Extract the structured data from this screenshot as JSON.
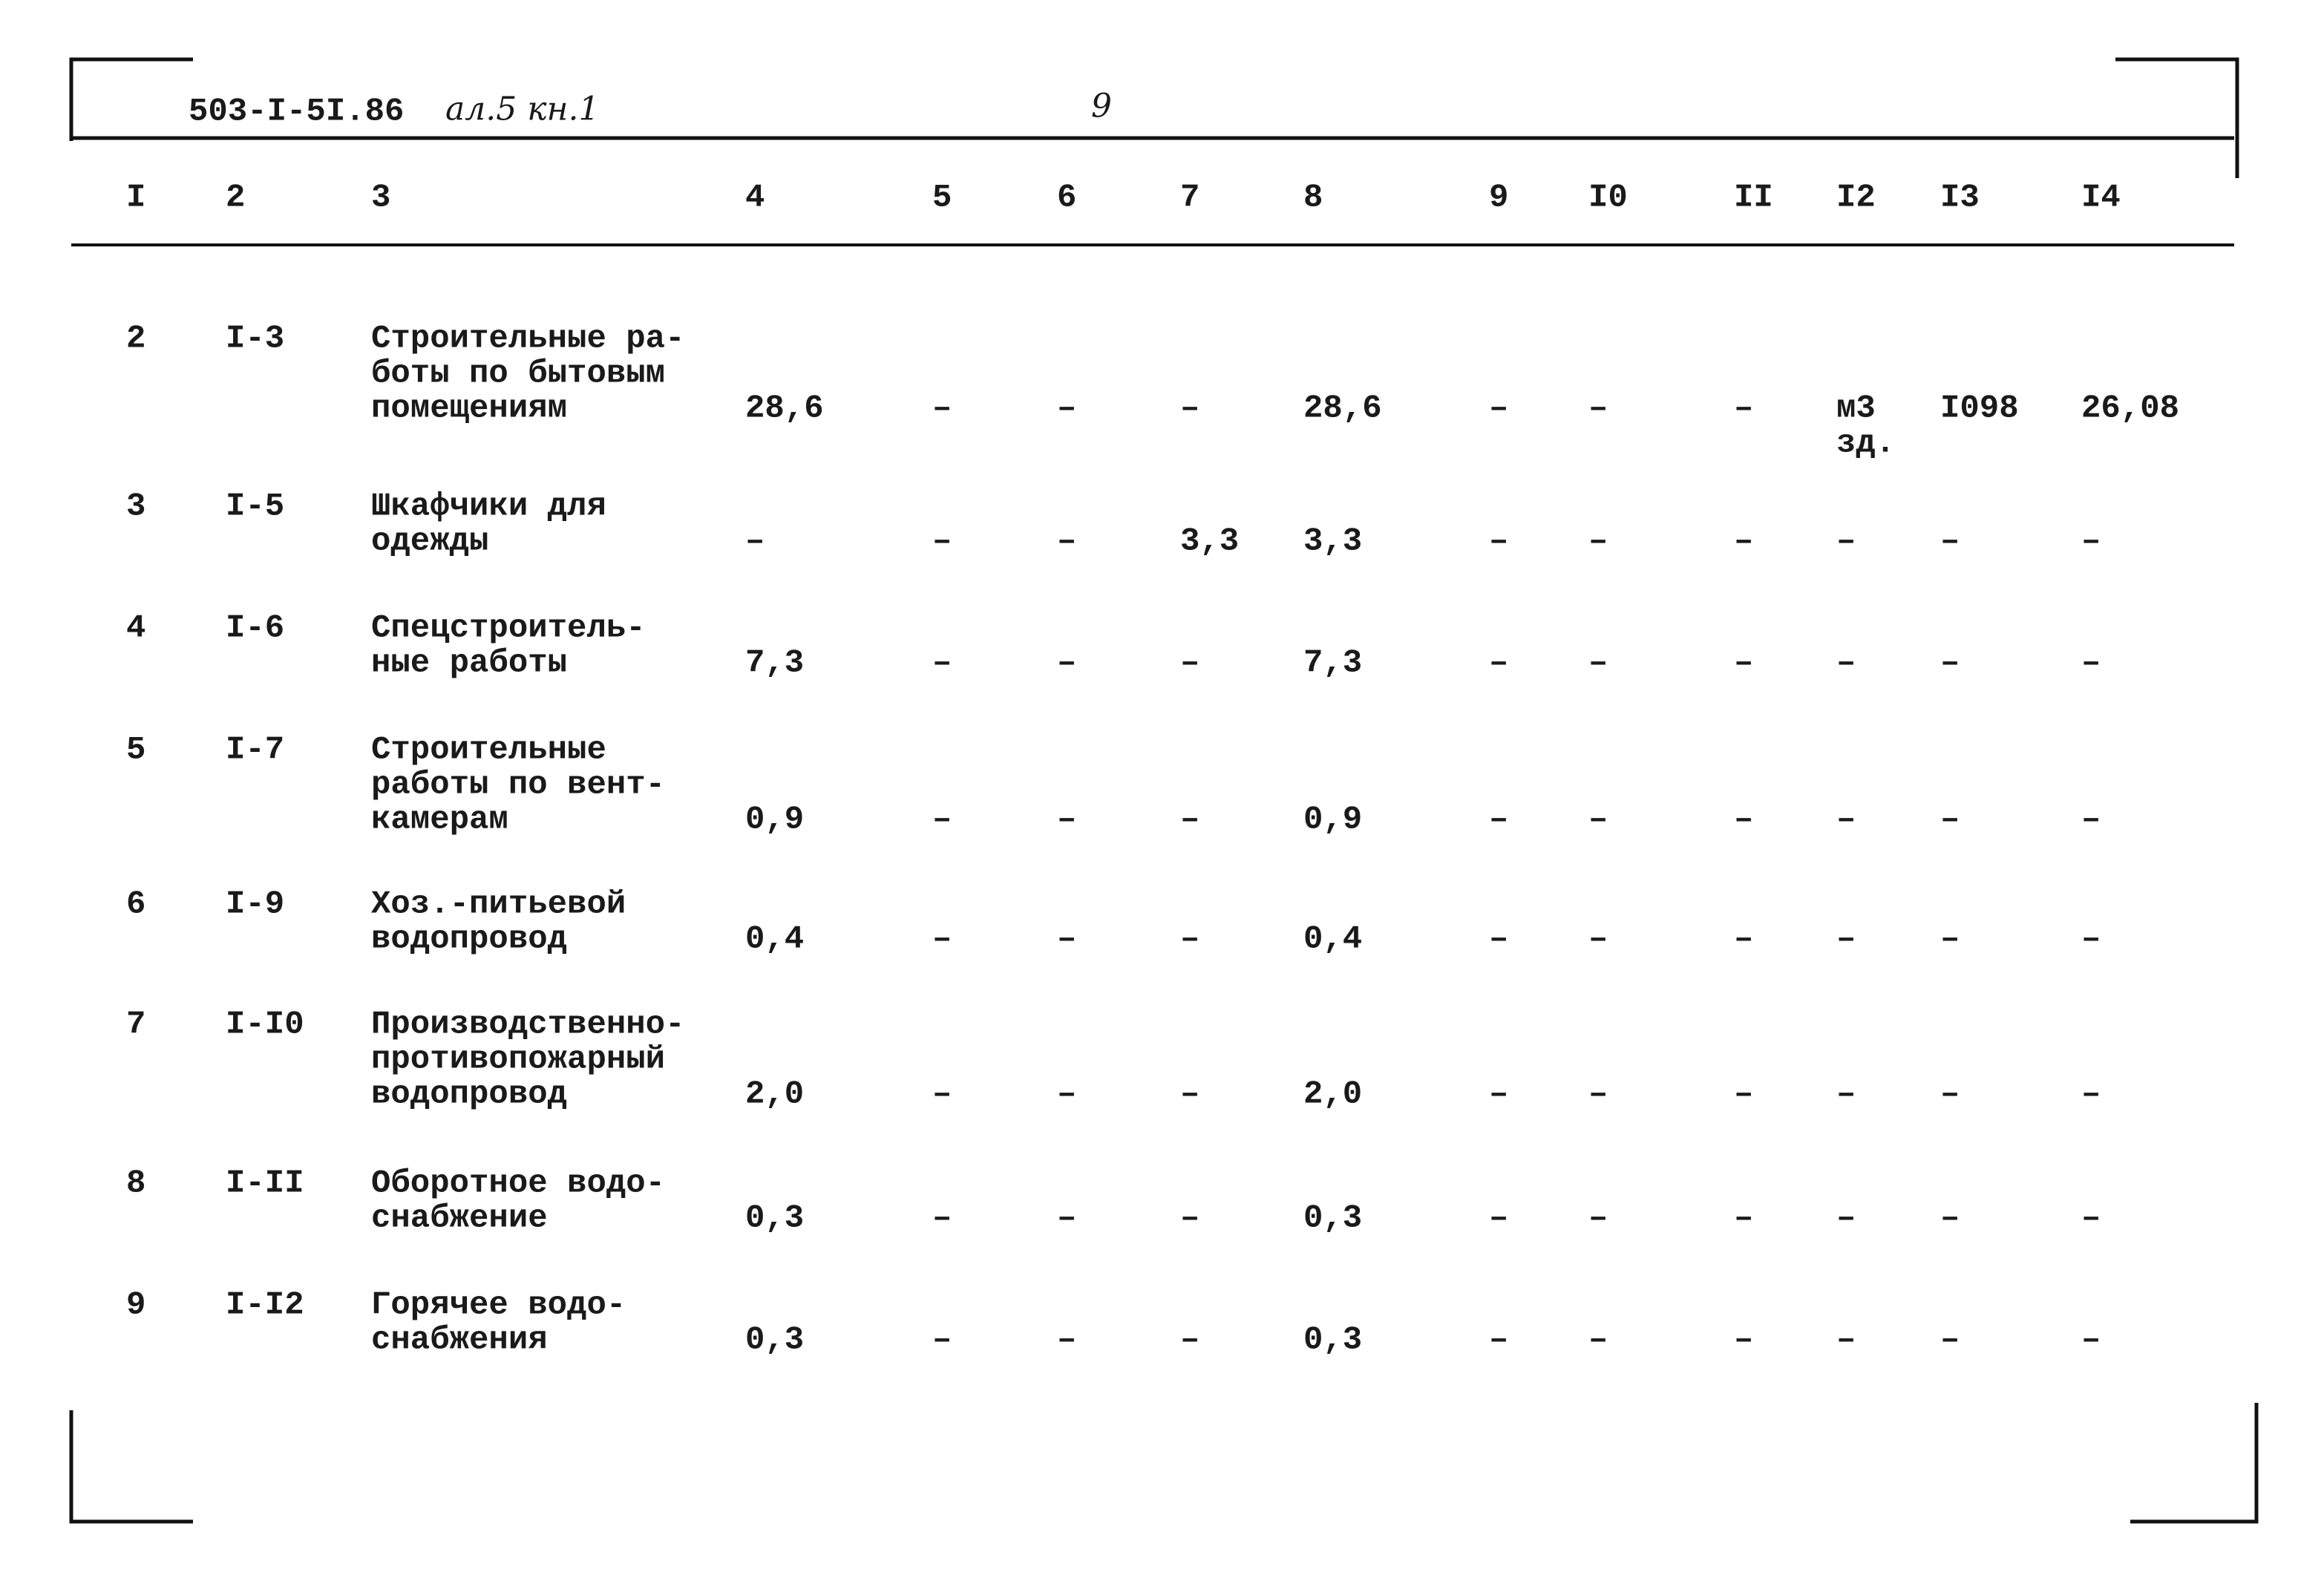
{
  "header": {
    "code": "503-I-5I.86",
    "note": "ал.5 кн.1",
    "page": "9"
  },
  "table": {
    "columns": [
      "I",
      "2",
      "3",
      "4",
      "5",
      "6",
      "7",
      "8",
      "9",
      "I0",
      "II",
      "I2",
      "I3",
      "I4"
    ],
    "rows": [
      [
        "2",
        "I-3",
        [
          "Строительные ра-",
          "боты по бытовым",
          "помещениям"
        ],
        "28,6",
        "–",
        "–",
        "–",
        "28,6",
        "–",
        "–",
        "–",
        [
          "м3",
          "зд."
        ],
        "I098",
        "26,08"
      ],
      [
        "3",
        "I-5",
        [
          "Шкафчики для",
          "одежды"
        ],
        "–",
        "–",
        "–",
        "3,3",
        "3,3",
        "–",
        "–",
        "–",
        "–",
        "–",
        "–"
      ],
      [
        "4",
        "I-6",
        [
          "Спецстроитель-",
          "ные работы"
        ],
        "7,3",
        "–",
        "–",
        "–",
        "7,3",
        "–",
        "–",
        "–",
        "–",
        "–",
        "–"
      ],
      [
        "5",
        "I-7",
        [
          "Строительные",
          "работы по вент-",
          "камерам"
        ],
        "0,9",
        "–",
        "–",
        "–",
        "0,9",
        "–",
        "–",
        "–",
        "–",
        "–",
        "–"
      ],
      [
        "6",
        "I-9",
        [
          "Хоз.-питьевой",
          "водопровод"
        ],
        "0,4",
        "–",
        "–",
        "–",
        "0,4",
        "–",
        "–",
        "–",
        "–",
        "–",
        "–"
      ],
      [
        "7",
        "I-I0",
        [
          "Производственно-",
          "противопожарный",
          "водопровод"
        ],
        "2,0",
        "–",
        "–",
        "–",
        "2,0",
        "–",
        "–",
        "–",
        "–",
        "–",
        "–"
      ],
      [
        "8",
        "I-II",
        [
          "Оборотное водо-",
          "снабжение"
        ],
        "0,3",
        "–",
        "–",
        "–",
        "0,3",
        "–",
        "–",
        "–",
        "–",
        "–",
        "–"
      ],
      [
        "9",
        "I-I2",
        [
          "Горячее водо-",
          "снабжения"
        ],
        "0,3",
        "–",
        "–",
        "–",
        "0,3",
        "–",
        "–",
        "–",
        "–",
        "–",
        "–"
      ]
    ]
  }
}
